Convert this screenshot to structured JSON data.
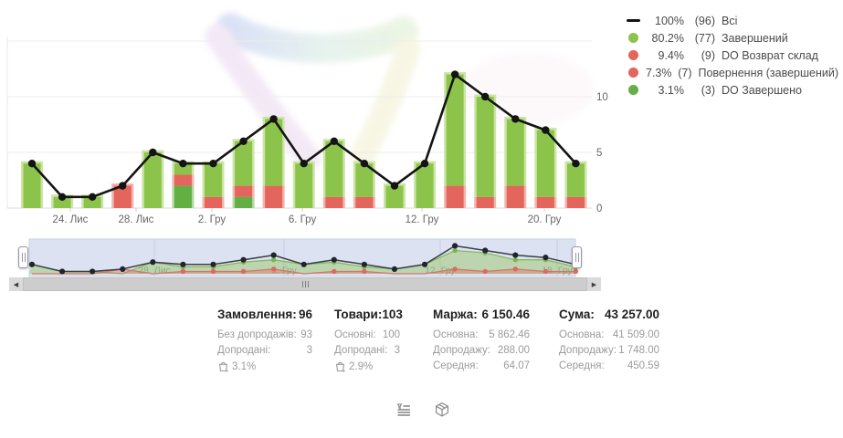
{
  "legend": {
    "items": [
      {
        "swatch": "line",
        "color": "#141414",
        "pct": "100%",
        "count": "(96)",
        "label": "Всі"
      },
      {
        "swatch": "dot",
        "color": "#8cc44b",
        "pct": "80.2%",
        "count": "(77)",
        "label": "Завершений"
      },
      {
        "swatch": "dot",
        "color": "#e4655b",
        "pct": "9.4%",
        "count": "(9)",
        "label": "DO Возврат склад"
      },
      {
        "swatch": "dot",
        "color": "#e4655b",
        "pct": "7.3%",
        "count": "(7)",
        "label": "Повернення (завершений)"
      },
      {
        "swatch": "dot",
        "color": "#63af44",
        "pct": "3.1%",
        "count": "(3)",
        "label": "DO Завершено"
      }
    ]
  },
  "chart_data": {
    "type": "bar",
    "subtype": "stacked bars with total line overlay",
    "n_points": 19,
    "series": [
      {
        "name": "Всі",
        "type": "line",
        "color": "#141414",
        "values": [
          4,
          1,
          1,
          2,
          5,
          4,
          4,
          6,
          8,
          4,
          6,
          4,
          2,
          4,
          12,
          10,
          8,
          7,
          4
        ]
      },
      {
        "name": "Завершений",
        "type": "bar",
        "color": "#8cc44b",
        "values": [
          4,
          1,
          1,
          0,
          5,
          1,
          3,
          4,
          6,
          4,
          5,
          3,
          2,
          4,
          10,
          9,
          6,
          6,
          3
        ]
      },
      {
        "name": "Повернення / DO Возврат склад",
        "type": "bar",
        "color": "#e4655b",
        "values": [
          0,
          0,
          0,
          2,
          0,
          1,
          1,
          1,
          2,
          0,
          1,
          1,
          0,
          0,
          2,
          1,
          2,
          1,
          1
        ]
      },
      {
        "name": "DO Завершено",
        "type": "bar",
        "color": "#63af44",
        "values": [
          0,
          0,
          0,
          0,
          0,
          2,
          0,
          1,
          0,
          0,
          0,
          0,
          0,
          0,
          0,
          0,
          0,
          0,
          0
        ]
      }
    ],
    "stack_order_bottom_to_top": [
      "DO Завершено",
      "Повернення / DO Возврат склад",
      "Завершений"
    ],
    "x_ticks": [
      {
        "label": "24. Лис",
        "pos": 0.1078
      },
      {
        "label": "28. Лис",
        "pos": 0.2203
      },
      {
        "label": "2. Гру",
        "pos": 0.35
      },
      {
        "label": "6. Гру",
        "pos": 0.5047
      },
      {
        "label": "12. Гру",
        "pos": 0.7094
      },
      {
        "label": "20. Гру",
        "pos": 0.9188
      }
    ],
    "y_ticks": [
      {
        "label": "0",
        "value": 0
      },
      {
        "label": "5",
        "value": 5
      },
      {
        "label": "10",
        "value": 10
      }
    ],
    "ylim": [
      0,
      15
    ],
    "grid": true,
    "legend_position": "top-right"
  },
  "navigator": {
    "ticks": [
      {
        "label": "28. Лис",
        "pos": 0.2291
      },
      {
        "label": "5. Гру",
        "pos": 0.4666
      },
      {
        "label": "12. Гру",
        "pos": 0.7525
      },
      {
        "label": "18. Гру",
        "pos": 0.9666
      }
    ],
    "bg_color": "#dce2f1"
  },
  "scrollbar": {
    "left_arrow": "◀",
    "right_arrow": "▶"
  },
  "stats": {
    "columns": [
      {
        "title": "Замовлення:",
        "value": "96",
        "rows": [
          {
            "label": "Без допродажів:",
            "value": "93"
          },
          {
            "label": "Допродані:",
            "value": "3"
          }
        ],
        "upsell_pct": "3.1%"
      },
      {
        "title": "Товари:",
        "value": "103",
        "rows": [
          {
            "label": "Основні:",
            "value": "100"
          },
          {
            "label": "Допродані:",
            "value": "3"
          }
        ],
        "upsell_pct": "2.9%"
      },
      {
        "title": "Маржа:",
        "value": "6 150.46",
        "rows": [
          {
            "label": "Основна:",
            "value": "5 862.46"
          },
          {
            "label": "Допродажу:",
            "value": "288.00"
          },
          {
            "label": "Середня:",
            "value": "64.07"
          }
        ]
      },
      {
        "title": "Сума:",
        "value": "43 257.00",
        "rows": [
          {
            "label": "Основна:",
            "value": "41 509.00"
          },
          {
            "label": "Допродажу:",
            "value": "1 748.00"
          },
          {
            "label": "Середня:",
            "value": "450.59"
          }
        ]
      }
    ]
  },
  "footer_icons": [
    "status-list-icon",
    "package-icon"
  ]
}
